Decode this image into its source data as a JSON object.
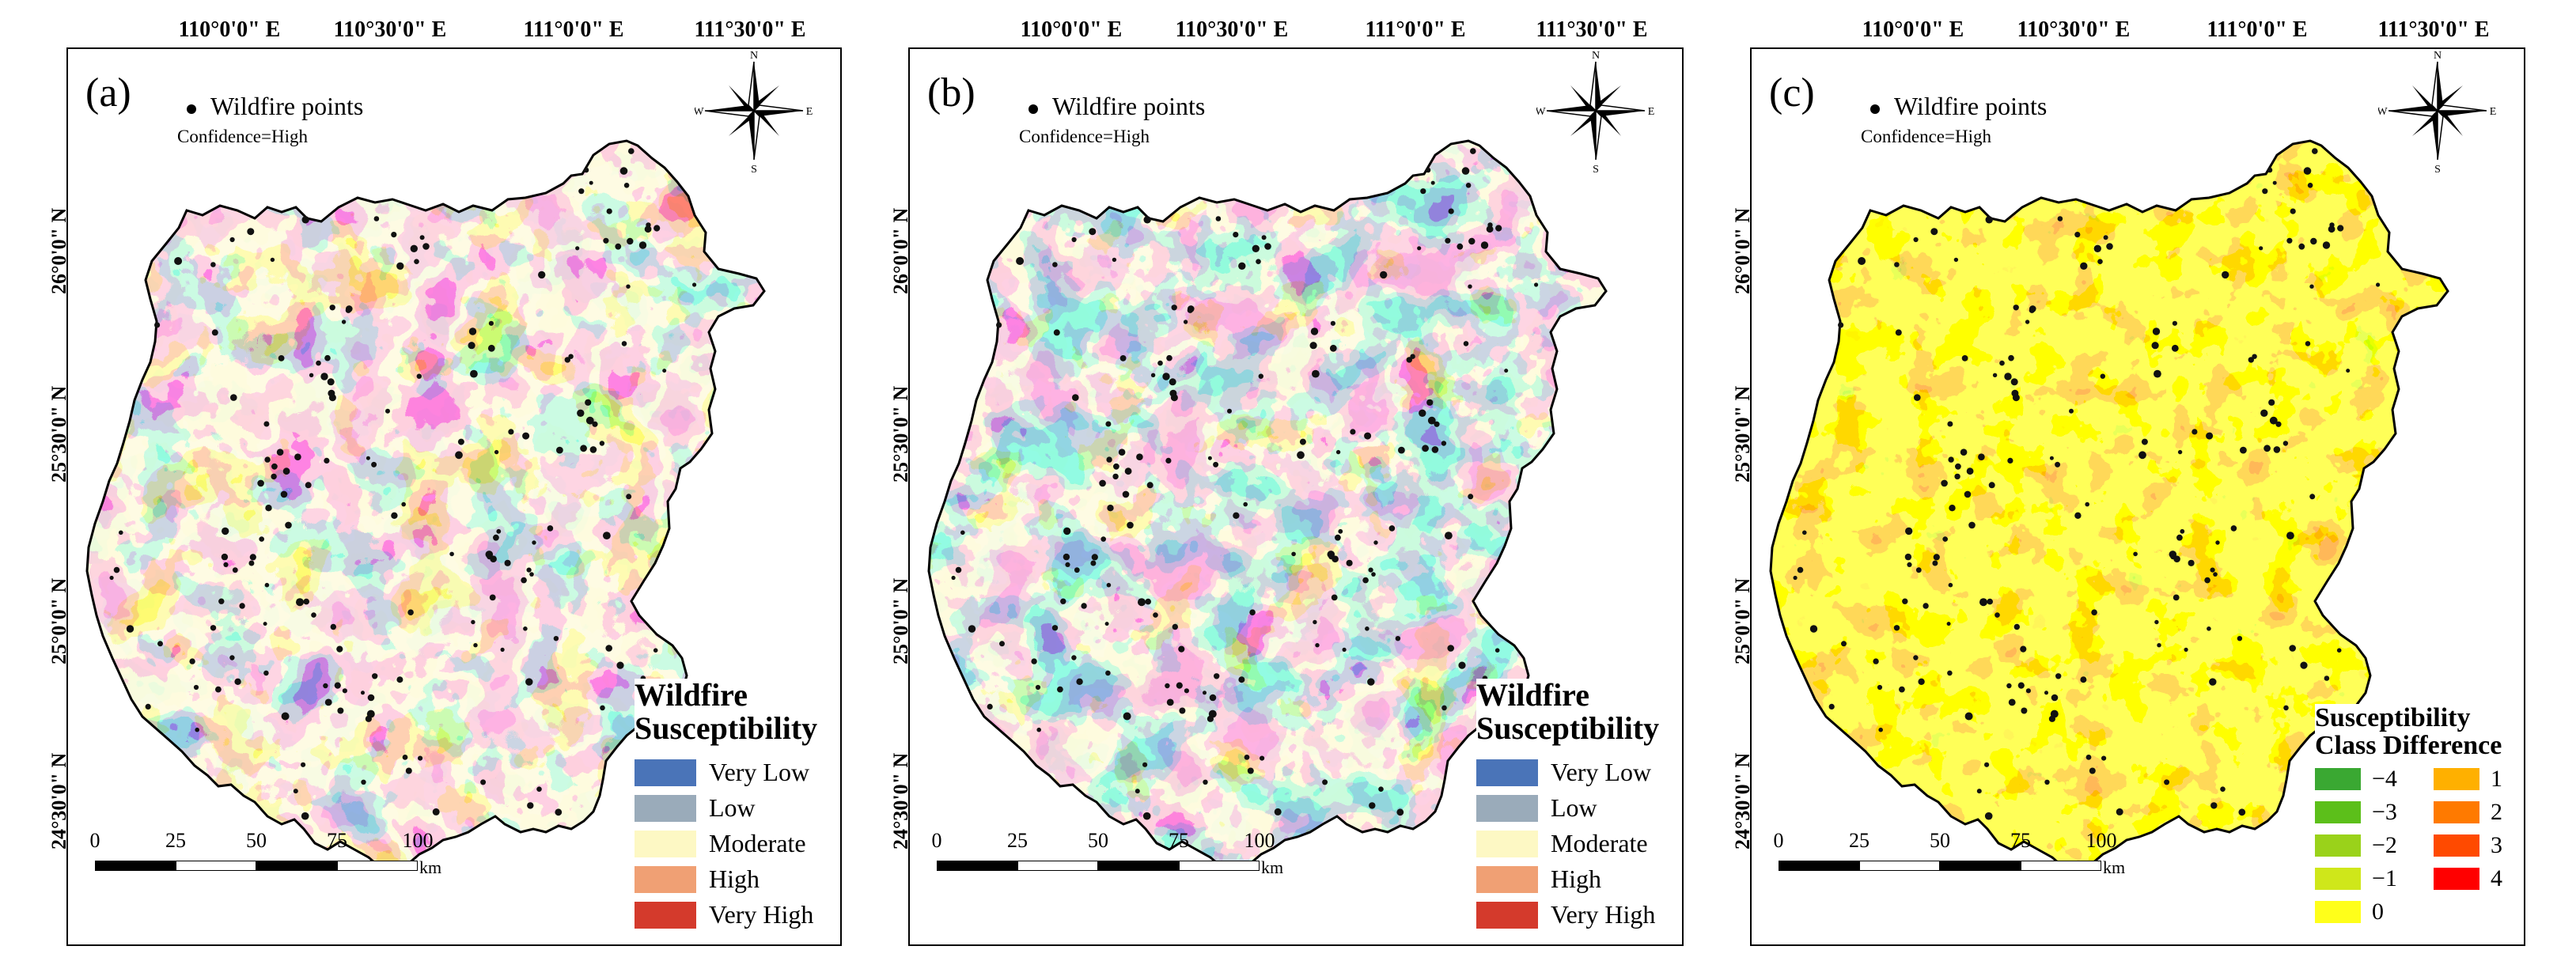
{
  "longitude_labels": [
    "110°0'0\" E",
    "110°30'0\" E",
    "111°0'0\" E",
    "111°30'0\" E"
  ],
  "latitude_labels": [
    "26°0'0\" N",
    "25°30'0\" N",
    "25°0'0\" N",
    "24°30'0\" N"
  ],
  "wildfire_label": "Wildfire points",
  "confidence_label": "Confidence=High",
  "compass": {
    "n": "N",
    "s": "S",
    "e": "E",
    "w": "W"
  },
  "scale_bar": {
    "ticks": [
      "0",
      "25",
      "50",
      "75",
      "100"
    ],
    "unit": "km"
  },
  "panels": [
    {
      "label": "(a)"
    },
    {
      "label": "(b)"
    },
    {
      "label": "(c)"
    }
  ],
  "susceptibility_legend": {
    "title_line1": "Wildfire",
    "title_line2": "Susceptibility",
    "classes": [
      {
        "label": "Very Low",
        "color": "#4a74b8"
      },
      {
        "label": "Low",
        "color": "#9aabba"
      },
      {
        "label": "Moderate",
        "color": "#fdf8c4"
      },
      {
        "label": "High",
        "color": "#f0a074"
      },
      {
        "label": "Very High",
        "color": "#d43a2c"
      }
    ]
  },
  "difference_legend": {
    "title_line1": "Susceptibility",
    "title_line2": "Class Difference",
    "classes": [
      {
        "label": "−4",
        "color": "#3aa832"
      },
      {
        "label": "−3",
        "color": "#5cbf1a"
      },
      {
        "label": "−2",
        "color": "#9ad21a"
      },
      {
        "label": "−1",
        "color": "#cfe71a"
      },
      {
        "label": "0",
        "color": "#ffff1a"
      },
      {
        "label": "1",
        "color": "#ffb000"
      },
      {
        "label": "2",
        "color": "#ff7a00"
      },
      {
        "label": "3",
        "color": "#ff4a00"
      },
      {
        "label": "4",
        "color": "#ff0000"
      }
    ]
  }
}
